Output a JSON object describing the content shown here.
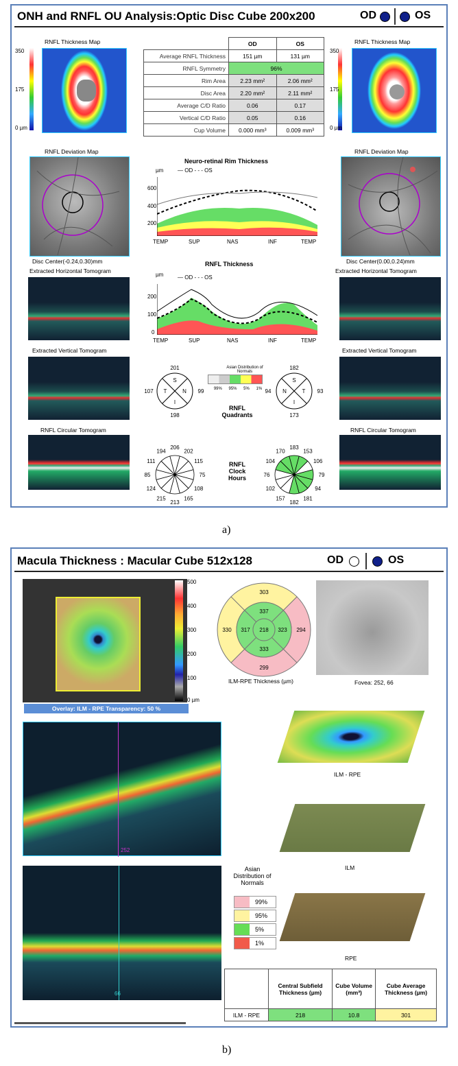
{
  "panel_a": {
    "title": "ONH and RNFL OU Analysis:Optic Disc Cube 200x200",
    "od": "OD",
    "os": "OS",
    "thickness_map_label": "RNFL Thickness Map",
    "scale_ticks": [
      "350",
      "175",
      "0 µm"
    ],
    "deviation_map_label": "RNFL Deviation Map",
    "disc_center_od": "Disc Center(-0.24,0.30)mm",
    "disc_center_os": "Disc Center(0.00,0.24)mm",
    "horiz_tomo_label": "Extracted Horizontal Tomogram",
    "vert_tomo_label": "Extracted Vertical Tomogram",
    "circ_tomo_label": "RNFL Circular Tomogram",
    "table": {
      "col_od": "OD",
      "col_os": "OS",
      "rows": [
        {
          "label": "Average RNFL Thickness",
          "od": "151 µm",
          "os": "131 µm"
        },
        {
          "label": "RNFL Symmetry",
          "span": "96%"
        },
        {
          "label": "Rim Area",
          "od": "2.23 mm²",
          "os": "2.06 mm²"
        },
        {
          "label": "Disc Area",
          "od": "2.20 mm²",
          "os": "2.11 mm²"
        },
        {
          "label": "Average C/D Ratio",
          "od": "0.06",
          "os": "0.17"
        },
        {
          "label": "Vertical C/D Ratio",
          "od": "0.05",
          "os": "0.16"
        },
        {
          "label": "Cup Volume",
          "od": "0.000 mm³",
          "os": "0.009 mm³"
        }
      ]
    },
    "rim_chart": {
      "title": "Neuro-retinal Rim Thickness",
      "unit": "µm",
      "legend_od": "OD",
      "legend_os": "OS",
      "yticks": [
        "600",
        "400",
        "200"
      ],
      "xticks": [
        "TEMP",
        "SUP",
        "NAS",
        "INF",
        "TEMP"
      ]
    },
    "rnfl_chart": {
      "title": "RNFL Thickness",
      "unit": "µm",
      "legend_od": "OD",
      "legend_os": "OS",
      "yticks": [
        "200",
        "100",
        "0"
      ],
      "xticks": [
        "TEMP",
        "SUP",
        "NAS",
        "INF",
        "TEMP"
      ]
    },
    "asian_label": "Asian Distribution of Normals",
    "asian_pcts": [
      "99%",
      "95%",
      "5%",
      "1%"
    ],
    "quadrants_label": "RNFL Quadrants",
    "clock_label": "RNFL Clock Hours",
    "quad_od": {
      "S": "201",
      "T": "107",
      "N": "99",
      "I": "198",
      "s": "S",
      "t": "T",
      "n": "N",
      "i": "I"
    },
    "quad_os": {
      "S": "182",
      "N": "94",
      "T": "93",
      "I": "173",
      "s": "S",
      "t": "T",
      "n": "N",
      "i": "I"
    },
    "clock_od": [
      "206",
      "202",
      "115",
      "75",
      "108",
      "165",
      "213",
      "215",
      "124",
      "85",
      "111",
      "194"
    ],
    "clock_os": [
      "183",
      "153",
      "106",
      "79",
      "94",
      "181",
      "182",
      "157",
      "102",
      "76",
      "104",
      "170"
    ],
    "clock_os_green": [
      true,
      true,
      false,
      true,
      true,
      true,
      true,
      false,
      false,
      false,
      true,
      true
    ]
  },
  "fig_a": "a)",
  "panel_b": {
    "title": "Macula Thickness : Macular Cube 512x128",
    "od": "OD",
    "os": "OS",
    "scale_ticks": [
      "500",
      "400",
      "300",
      "200",
      "100",
      "0 µm"
    ],
    "overlay": "Overlay: ILM - RPE  Transparency: 50 %",
    "etdrs": {
      "center": "218",
      "inner_s": "337",
      "inner_n": "323",
      "inner_i": "333",
      "inner_t": "317",
      "outer_s": "303",
      "outer_n": "294",
      "outer_i": "299",
      "outer_t": "330"
    },
    "etdrs_label": "ILM-RPE Thickness (µm)",
    "fovea": "Fovea: 252, 66",
    "surf1": "ILM - RPE",
    "surf2": "ILM",
    "surf3": "RPE",
    "bscan1_num": "252",
    "bscan2_num": "66",
    "legend_title": "Asian Distribution of Normals",
    "legend": [
      {
        "label": "99%",
        "color": "#f7bcc4"
      },
      {
        "label": "95%",
        "color": "#fff3a0"
      },
      {
        "label": "5%",
        "color": "#66dd55"
      },
      {
        "label": "1%",
        "color": "#f15a4a"
      }
    ],
    "summary": {
      "h1": "Central Subfield Thickness (µm)",
      "h2": "Cube Volume (mm³)",
      "h3": "Cube Average Thickness (µm)",
      "row": "ILM - RPE",
      "v1": "218",
      "v2": "10.8",
      "v3": "301"
    }
  },
  "fig_b": "b)"
}
